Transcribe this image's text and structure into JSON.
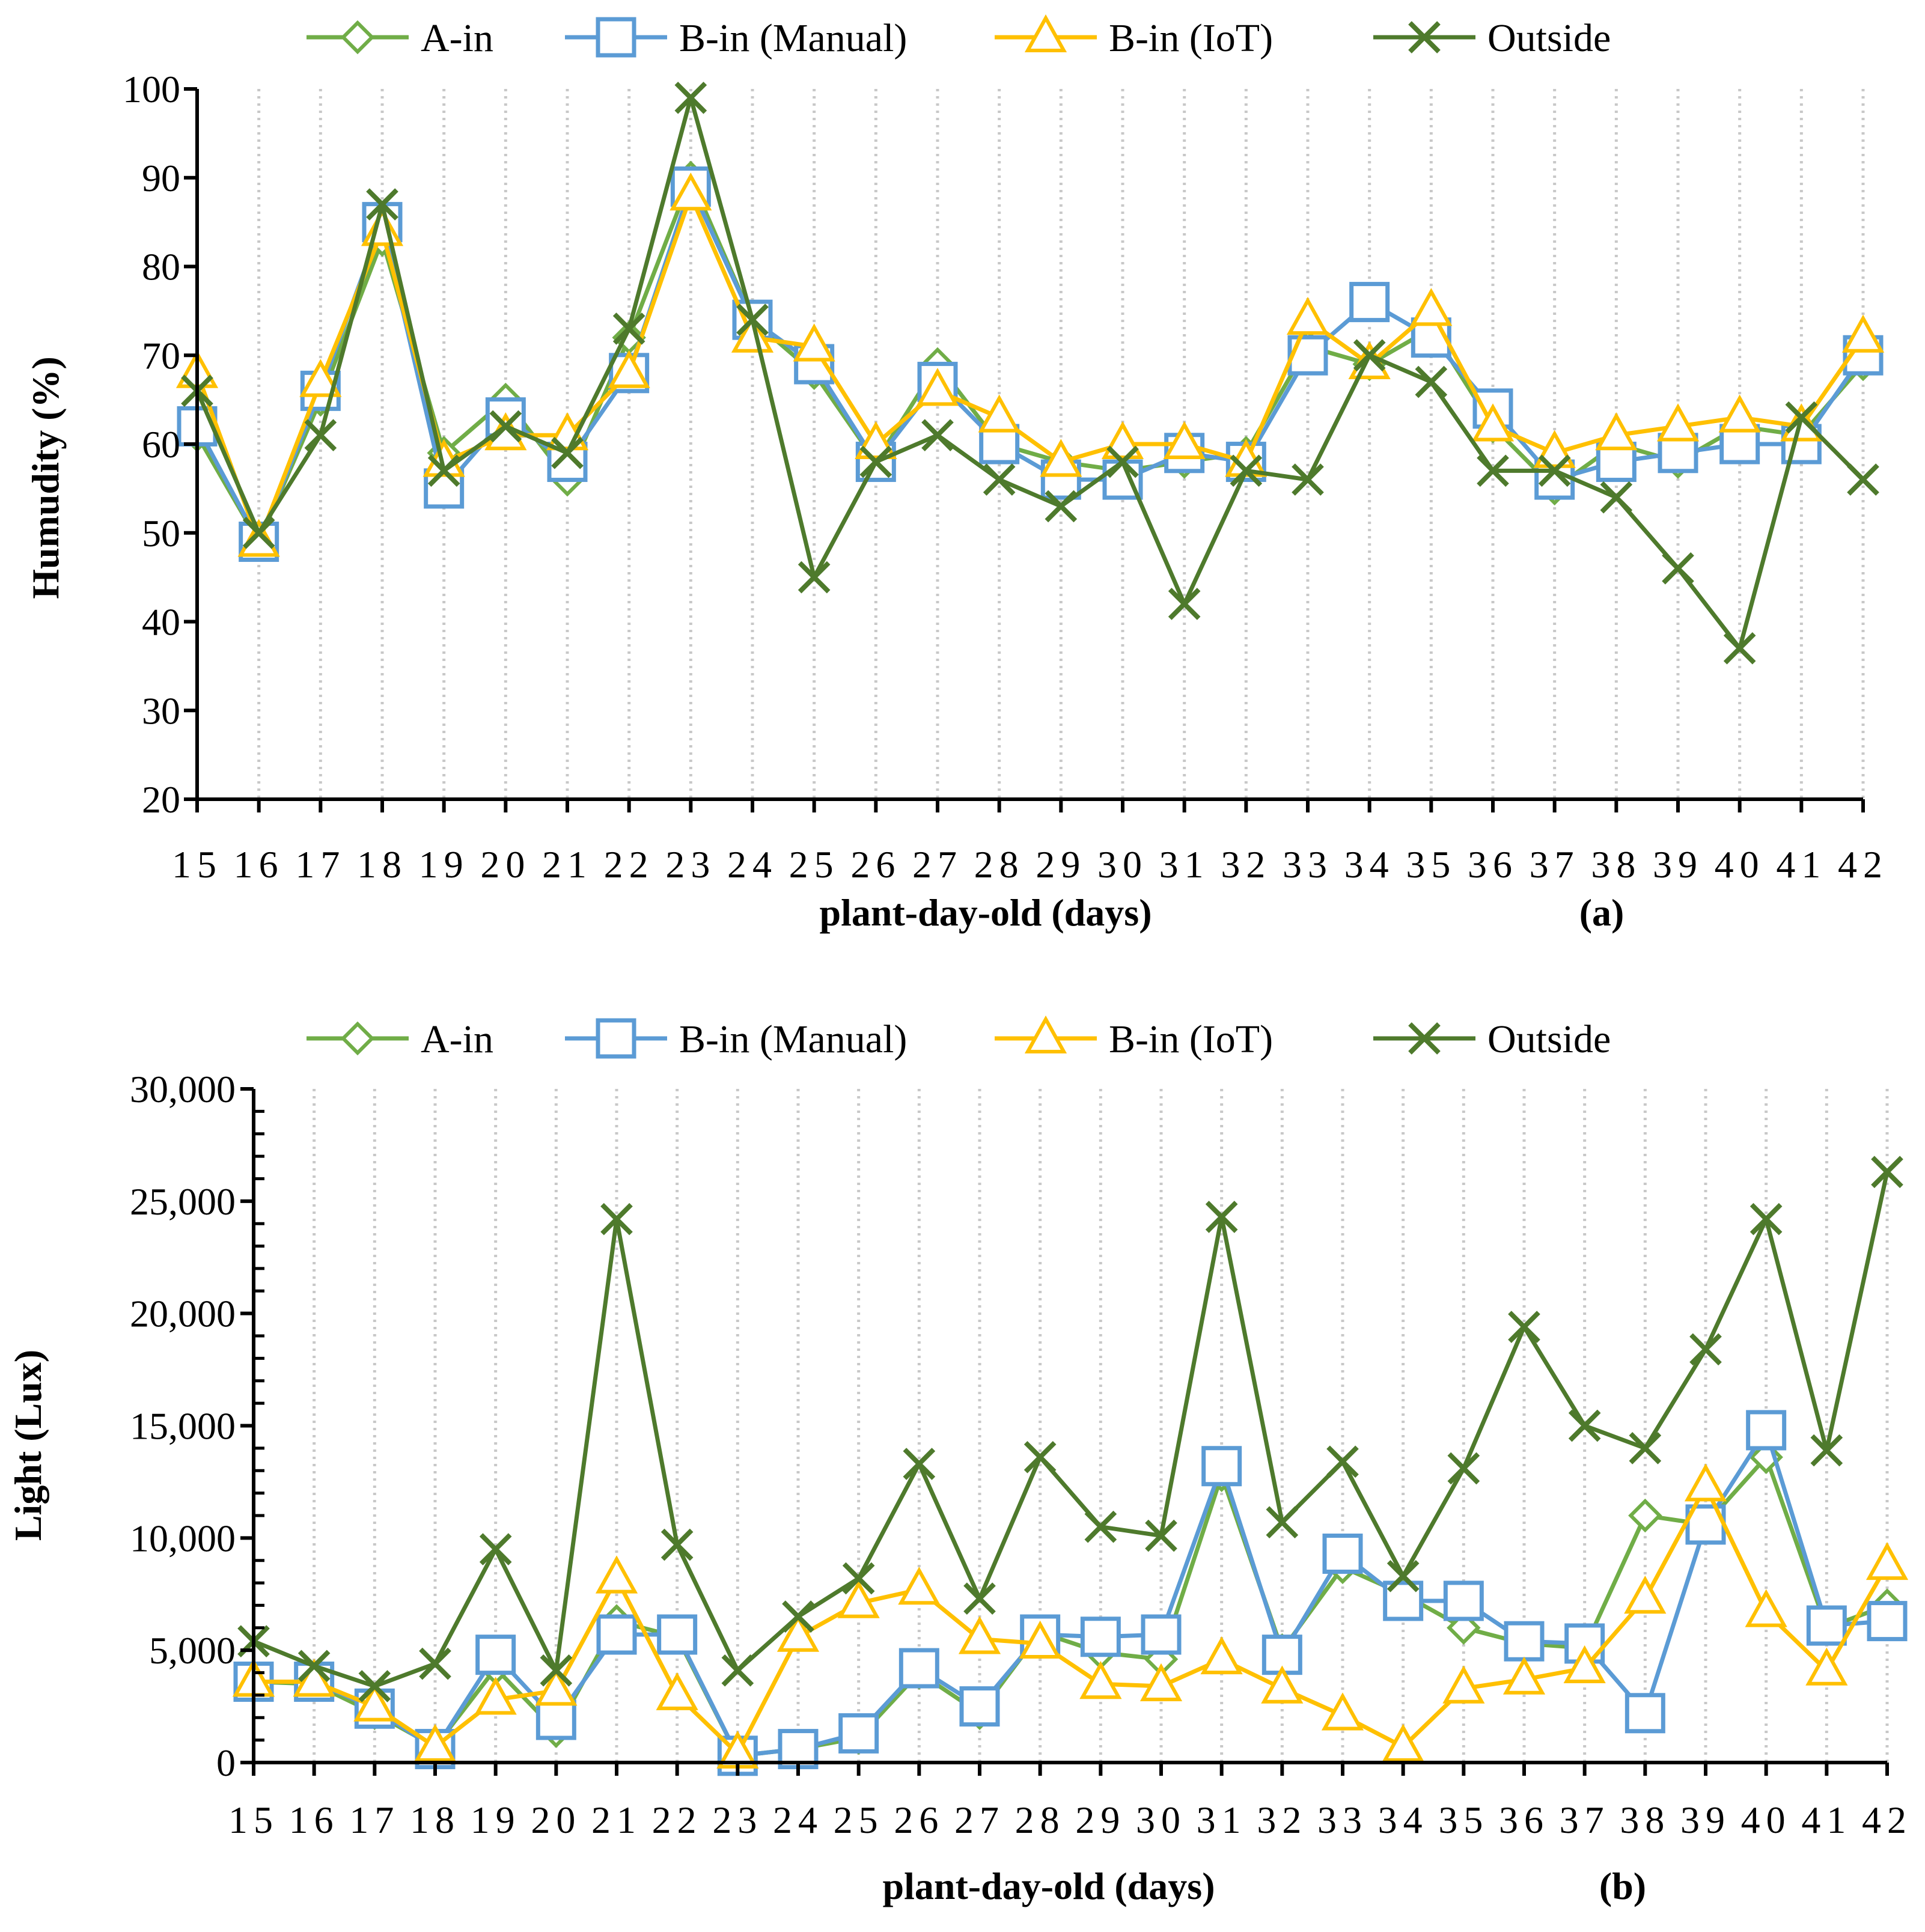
{
  "chart_data": [
    {
      "type": "line",
      "panel_label": "(a)",
      "xlabel": "plant-day-old (days)",
      "ylabel": "Humudity (%)",
      "ylim": [
        20,
        100
      ],
      "yticks": [
        "20",
        "30",
        "40",
        "50",
        "60",
        "70",
        "80",
        "90",
        "100"
      ],
      "ytick_values": [
        20,
        30,
        40,
        50,
        60,
        70,
        80,
        90,
        100
      ],
      "x": [
        "15",
        "16",
        "17",
        "18",
        "19",
        "20",
        "21",
        "22",
        "23",
        "24",
        "25",
        "26",
        "27",
        "28",
        "29",
        "30",
        "31",
        "32",
        "33",
        "34",
        "35",
        "36",
        "37",
        "38",
        "39",
        "40",
        "41",
        "42"
      ],
      "grid": "vertical dotted",
      "legend": "top",
      "series": [
        {
          "name": "A-in",
          "color": "#70AD47",
          "marker": "diamond",
          "values": [
            61,
            49,
            65,
            83,
            59,
            65,
            56,
            72,
            90,
            74,
            68,
            58,
            69,
            60,
            58,
            57,
            58,
            59,
            71,
            69,
            73,
            62,
            55,
            60,
            58,
            62,
            61,
            69
          ]
        },
        {
          "name": "B-in (Manual)",
          "color": "#5B9BD5",
          "marker": "square",
          "values": [
            62,
            49,
            66,
            85,
            55,
            63,
            58,
            68,
            89,
            74,
            69,
            58,
            67,
            60,
            56,
            56,
            59,
            58,
            70,
            76,
            72,
            64,
            56,
            58,
            59,
            60,
            60,
            70
          ]
        },
        {
          "name": "B-in (IoT)",
          "color": "#FFC000",
          "marker": "triangle",
          "values": [
            68,
            49,
            67,
            84,
            58,
            61,
            61,
            68,
            88,
            72,
            71,
            60,
            66,
            63,
            58,
            60,
            60,
            58,
            74,
            69,
            75,
            62,
            59,
            61,
            62,
            63,
            62,
            72
          ]
        },
        {
          "name": "Outside",
          "color": "#4E7A2C",
          "marker": "x",
          "values": [
            66,
            50,
            61,
            87,
            57,
            62,
            59,
            73,
            99,
            74,
            45,
            58,
            61,
            56,
            53,
            58,
            42,
            57,
            56,
            70,
            67,
            57,
            57,
            54,
            46,
            37,
            63,
            56
          ]
        }
      ]
    },
    {
      "type": "line",
      "panel_label": "(b)",
      "xlabel": "plant-day-old (days)",
      "ylabel": "Light (Lux)",
      "ylim": [
        0,
        30000
      ],
      "yticks": [
        "0",
        "5,000",
        "10,000",
        "15,000",
        "20,000",
        "25,000",
        "30,000"
      ],
      "ytick_values": [
        0,
        5000,
        10000,
        15000,
        20000,
        25000,
        30000
      ],
      "x": [
        "15",
        "16",
        "17",
        "18",
        "19",
        "20",
        "21",
        "22",
        "23",
        "24",
        "25",
        "26",
        "27",
        "28",
        "29",
        "30",
        "31",
        "32",
        "33",
        "34",
        "35",
        "36",
        "37",
        "38",
        "39",
        "40",
        "41",
        "42"
      ],
      "grid": "vertical dotted",
      "legend": "top",
      "series": [
        {
          "name": "A-in",
          "color": "#70AD47",
          "marker": "diamond",
          "values": [
            3600,
            3500,
            2200,
            700,
            4200,
            1400,
            6300,
            5600,
            300,
            600,
            1100,
            4000,
            2200,
            5800,
            4900,
            4600,
            12800,
            5000,
            8700,
            7500,
            6000,
            5300,
            5100,
            11000,
            10600,
            13600,
            6000,
            7000
          ]
        },
        {
          "name": "B-in (Manual)",
          "color": "#5B9BD5",
          "marker": "square",
          "values": [
            3600,
            3600,
            2400,
            600,
            4800,
            1900,
            5700,
            5700,
            300,
            600,
            1300,
            4200,
            2500,
            5700,
            5600,
            5700,
            13200,
            4800,
            9300,
            7200,
            7200,
            5400,
            5300,
            2200,
            10600,
            14800,
            6100,
            6300
          ]
        },
        {
          "name": "B-in (IoT)",
          "color": "#FFC000",
          "marker": "triangle",
          "values": [
            3600,
            3600,
            2500,
            700,
            2800,
            3200,
            8200,
            3000,
            400,
            5600,
            7100,
            7700,
            5500,
            5300,
            3500,
            3400,
            4600,
            3300,
            2100,
            700,
            3300,
            3700,
            4200,
            7300,
            12300,
            6700,
            4100,
            8800
          ]
        },
        {
          "name": "Outside",
          "color": "#4E7A2C",
          "marker": "x",
          "values": [
            5400,
            4300,
            3400,
            4400,
            9500,
            4100,
            24200,
            9700,
            4100,
            6500,
            8200,
            13300,
            7300,
            13600,
            10500,
            10100,
            24300,
            10700,
            13400,
            8300,
            13100,
            19400,
            15000,
            14000,
            18400,
            24200,
            13900,
            26300
          ]
        }
      ]
    }
  ]
}
